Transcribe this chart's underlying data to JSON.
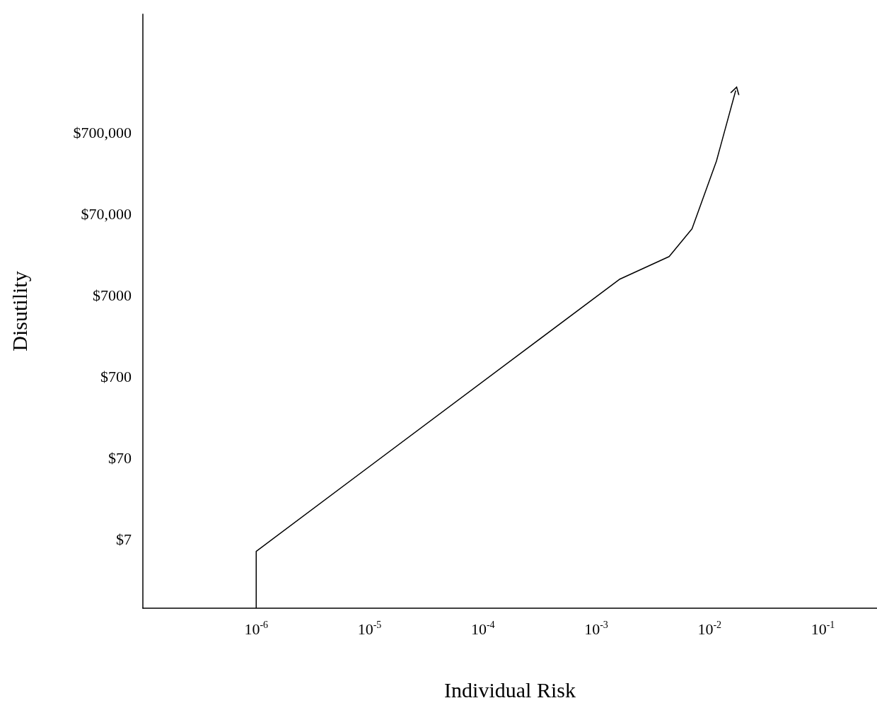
{
  "chart_data": {
    "type": "line",
    "xlabel": "Individual Risk",
    "ylabel": "Disutility",
    "log": "xy",
    "x": [
      1e-06,
      1e-06,
      0.0016,
      0.0044,
      0.007,
      0.0115,
      0.017
    ],
    "series": [
      {
        "color": "#000000",
        "values": [
          1,
          5,
          11000,
          21000,
          46000,
          313000,
          2300000
        ]
      }
    ],
    "xlim": [
      1e-07,
      0.3
    ],
    "xticks": [
      {
        "value": 1e-06,
        "label": "10$^{-6}$"
      },
      {
        "value": 1e-05,
        "label": "10$^{-5}$"
      },
      {
        "value": 0.0001,
        "label": "10$^{-4}$"
      },
      {
        "value": 0.001,
        "label": "10$^{-3}$"
      },
      {
        "value": 0.01,
        "label": "10$^{-2}$"
      },
      {
        "value": 0.1,
        "label": "10$^{-1}$"
      }
    ],
    "ylim": [
      1,
      20000000
    ],
    "yticks": [
      {
        "value": 7,
        "label": "$7"
      },
      {
        "value": 70,
        "label": "$70"
      },
      {
        "value": 700,
        "label": "$700"
      },
      {
        "value": 7000,
        "label": "$7000"
      },
      {
        "value": 70000,
        "label": "$70,000"
      },
      {
        "value": 700000,
        "label": "$700,000"
      }
    ],
    "grid": false,
    "marker": "none",
    "line_style": "solid"
  }
}
